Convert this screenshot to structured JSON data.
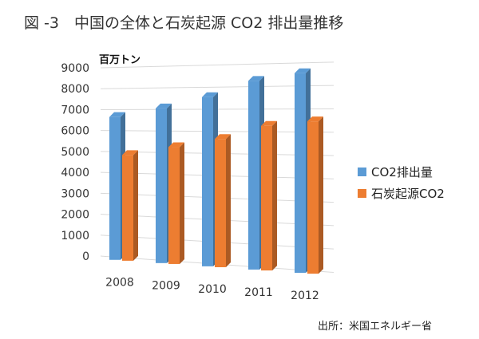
{
  "header": {
    "title": "図 -3　中国の全体と石炭起源 CO2 排出量推移",
    "unit": "百万トン"
  },
  "footer": {
    "source": "出所：米国エネルギー省"
  },
  "colors": {
    "series1": "#5b9bd5",
    "series2": "#ed7d31",
    "gridline": "#d9d9d9"
  },
  "chart_data": {
    "type": "bar",
    "style": "3d-clustered-column",
    "categories": [
      "2008",
      "2009",
      "2010",
      "2011",
      "2012"
    ],
    "series": [
      {
        "name": "CO2排出量",
        "values": [
          6800,
          7200,
          7700,
          8400,
          8700
        ]
      },
      {
        "name": "石炭起源CO2",
        "values": [
          5000,
          5400,
          5800,
          6400,
          6600
        ]
      }
    ],
    "yticks": [
      "0",
      "1000",
      "2000",
      "3000",
      "4000",
      "5000",
      "6000",
      "7000",
      "8000",
      "9000"
    ],
    "ylim": [
      0,
      9000
    ],
    "ylabel": "百万トン",
    "grid": true,
    "legend_position": "right"
  }
}
